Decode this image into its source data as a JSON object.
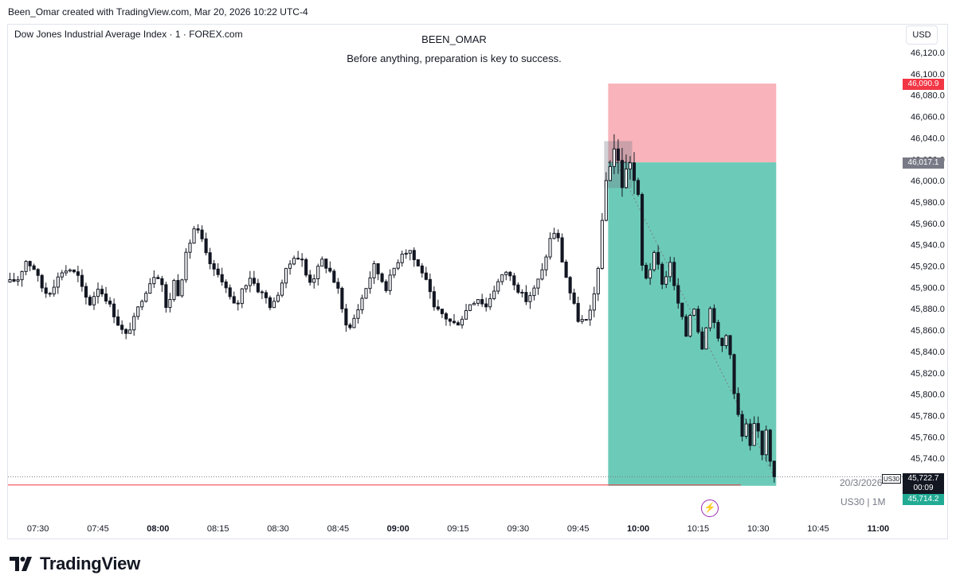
{
  "header": {
    "created_by": "Been_Omar created with TradingView.com, Mar 20, 2026 10:22 UTC-4"
  },
  "legend": {
    "symbol": "Dow Jones Industrial Average Index · 1 · FOREX.com",
    "user": "BEEN_OMAR",
    "note": "Before anything, preparation is key to success."
  },
  "currency": "USD",
  "badges": {
    "stop": "46,090.9",
    "entry": "46,017.1",
    "last": "45,722.7",
    "countdown": "00:09",
    "target": "45,714.2",
    "symbol_tag": "US30"
  },
  "date_label": "20/3/2026",
  "symbol_tf": "US30 | 1M",
  "footer": {
    "brand": "TradingView"
  },
  "colors": {
    "up": "#131722",
    "down": "#131722",
    "stop_zone": "#f7a7ae",
    "target_zone": "#5cc5b0",
    "stop_line": "#f23645"
  },
  "chart_data": {
    "type": "candlestick",
    "timeframe": "1 minute",
    "y_ticks": [
      46120,
      46100,
      46080,
      46060,
      46040,
      46020,
      46000,
      45980,
      45960,
      45940,
      45920,
      45900,
      45880,
      45860,
      45840,
      45820,
      45800,
      45780,
      45760,
      45740
    ],
    "ylim": [
      45705,
      46130
    ],
    "x_ticks": [
      {
        "label": "07:30",
        "min": 450,
        "bold": false
      },
      {
        "label": "07:45",
        "min": 465,
        "bold": false
      },
      {
        "label": "08:00",
        "min": 480,
        "bold": true
      },
      {
        "label": "08:15",
        "min": 495,
        "bold": false
      },
      {
        "label": "08:30",
        "min": 510,
        "bold": false
      },
      {
        "label": "08:45",
        "min": 525,
        "bold": false
      },
      {
        "label": "09:00",
        "min": 540,
        "bold": true
      },
      {
        "label": "09:15",
        "min": 555,
        "bold": false
      },
      {
        "label": "09:30",
        "min": 570,
        "bold": false
      },
      {
        "label": "09:45",
        "min": 585,
        "bold": false
      },
      {
        "label": "10:00",
        "min": 600,
        "bold": true
      },
      {
        "label": "10:15",
        "min": 615,
        "bold": false
      },
      {
        "label": "10:30",
        "min": 630,
        "bold": false
      },
      {
        "label": "10:45",
        "min": 645,
        "bold": false
      },
      {
        "label": "11:00",
        "min": 660,
        "bold": true
      }
    ],
    "xlim_min": [
      442.5,
      665.5
    ],
    "close_path": [
      [
        443,
        45905
      ],
      [
        445,
        45908
      ],
      [
        447,
        45925
      ],
      [
        449,
        45918
      ],
      [
        451,
        45900
      ],
      [
        452.5,
        45893
      ],
      [
        454,
        45903
      ],
      [
        456,
        45915
      ],
      [
        458,
        45917
      ],
      [
        460,
        45910
      ],
      [
        461.5,
        45893
      ],
      [
        463,
        45885
      ],
      [
        465,
        45900
      ],
      [
        467,
        45890
      ],
      [
        469,
        45875
      ],
      [
        470.5,
        45862
      ],
      [
        472,
        45855
      ],
      [
        474,
        45870
      ],
      [
        476,
        45890
      ],
      [
        478,
        45905
      ],
      [
        479.5,
        45915
      ],
      [
        481,
        45903
      ],
      [
        482,
        45880
      ],
      [
        483,
        45890
      ],
      [
        484,
        45906
      ],
      [
        485,
        45895
      ],
      [
        486,
        45910
      ],
      [
        487,
        45930
      ],
      [
        489,
        45955
      ],
      [
        490.5,
        45950
      ],
      [
        492,
        45930
      ],
      [
        494,
        45915
      ],
      [
        496,
        45908
      ],
      [
        498,
        45890
      ],
      [
        499.5,
        45880
      ],
      [
        501,
        45898
      ],
      [
        503,
        45910
      ],
      [
        505,
        45898
      ],
      [
        507,
        45890
      ],
      [
        508.5,
        45880
      ],
      [
        510,
        45895
      ],
      [
        512,
        45915
      ],
      [
        514,
        45930
      ],
      [
        516,
        45925
      ],
      [
        517.5,
        45905
      ],
      [
        519,
        45910
      ],
      [
        521,
        45925
      ],
      [
        523,
        45915
      ],
      [
        525,
        45897
      ],
      [
        526.5,
        45870
      ],
      [
        528,
        45862
      ],
      [
        530,
        45880
      ],
      [
        532,
        45900
      ],
      [
        534,
        45920
      ],
      [
        535.5,
        45910
      ],
      [
        537,
        45900
      ],
      [
        539,
        45918
      ],
      [
        541,
        45933
      ],
      [
        543,
        45935
      ],
      [
        544.5,
        45922
      ],
      [
        546,
        45915
      ],
      [
        547.5,
        45900
      ],
      [
        549,
        45880
      ],
      [
        551,
        45875
      ],
      [
        553,
        45868
      ],
      [
        554.5,
        45865
      ],
      [
        556,
        45872
      ],
      [
        558,
        45885
      ],
      [
        560,
        45890
      ],
      [
        562,
        45882
      ],
      [
        563.5,
        45895
      ],
      [
        565,
        45905
      ],
      [
        567,
        45915
      ],
      [
        569,
        45905
      ],
      [
        570.5,
        45895
      ],
      [
        572,
        45888
      ],
      [
        574,
        45898
      ],
      [
        576,
        45915
      ],
      [
        578,
        45945
      ],
      [
        579.5,
        45955
      ],
      [
        581,
        45925
      ],
      [
        583,
        45895
      ],
      [
        585,
        45870
      ],
      [
        587,
        45868
      ],
      [
        588.5,
        45880
      ],
      [
        590,
        45920
      ],
      [
        592,
        46000
      ],
      [
        594,
        46030
      ],
      [
        595,
        46018
      ],
      [
        596,
        45995
      ],
      [
        597,
        46010
      ],
      [
        598,
        46018
      ],
      [
        599,
        46000
      ],
      [
        600,
        45985
      ],
      [
        601,
        45920
      ],
      [
        602,
        45910
      ],
      [
        603,
        45918
      ],
      [
        604,
        45930
      ],
      [
        605,
        45920
      ],
      [
        606,
        45905
      ],
      [
        607,
        45910
      ],
      [
        608,
        45925
      ],
      [
        609,
        45900
      ],
      [
        610,
        45885
      ],
      [
        611,
        45870
      ],
      [
        612,
        45855
      ],
      [
        613,
        45875
      ],
      [
        614,
        45882
      ],
      [
        615,
        45860
      ],
      [
        616,
        45845
      ],
      [
        617,
        45865
      ],
      [
        618,
        45880
      ],
      [
        619,
        45870
      ],
      [
        620,
        45850
      ],
      [
        621,
        45845
      ],
      [
        622,
        45855
      ],
      [
        623,
        45840
      ],
      [
        624,
        45800
      ],
      [
        625,
        45780
      ],
      [
        626,
        45760
      ],
      [
        627,
        45770
      ],
      [
        628,
        45750
      ],
      [
        629,
        45770
      ],
      [
        630,
        45765
      ],
      [
        631,
        45745
      ],
      [
        632,
        45768
      ],
      [
        633,
        45740
      ],
      [
        634,
        45722.7
      ]
    ],
    "position": {
      "side": "short",
      "start_min": 592.5,
      "end_min": 634,
      "zone_right_min": 634.5,
      "entry": 46017.1,
      "stop": 46090.9,
      "target": 45714.2,
      "entry_box_high": 46037,
      "entry_box_low": 45993,
      "entry_box_end_min": 598.5
    },
    "last_price": 45722.7
  }
}
